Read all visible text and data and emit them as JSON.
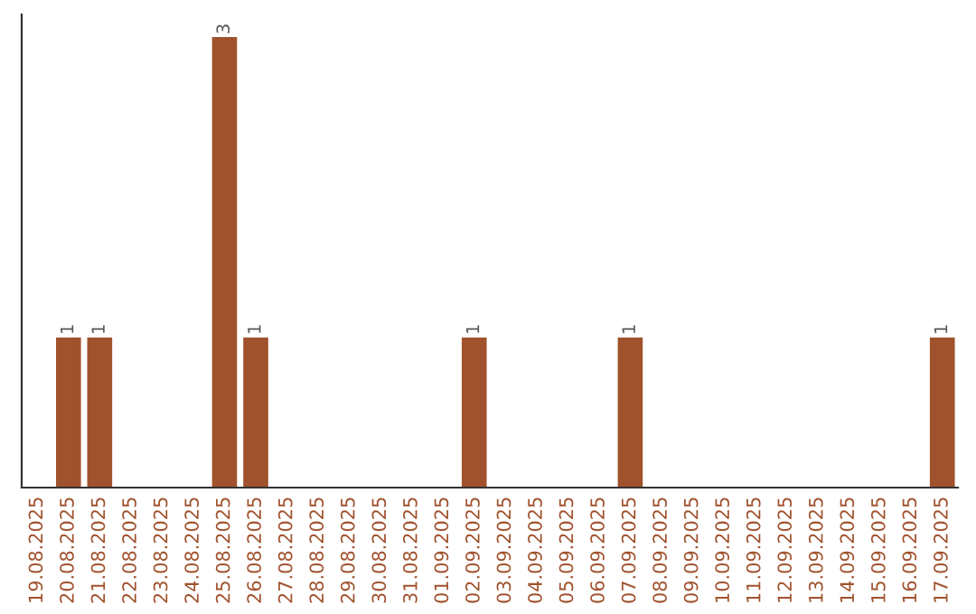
{
  "chart_data": {
    "type": "bar",
    "categories": [
      "19.08.2025",
      "20.08.2025",
      "21.08.2025",
      "22.08.2025",
      "23.08.2025",
      "24.08.2025",
      "25.08.2025",
      "26.08.2025",
      "27.08.2025",
      "28.08.2025",
      "29.08.2025",
      "30.08.2025",
      "31.08.2025",
      "01.09.2025",
      "02.09.2025",
      "03.09.2025",
      "04.09.2025",
      "05.09.2025",
      "06.09.2025",
      "07.09.2025",
      "08.09.2025",
      "09.09.2025",
      "10.09.2025",
      "11.09.2025",
      "12.09.2025",
      "13.09.2025",
      "14.09.2025",
      "15.09.2025",
      "16.09.2025",
      "17.09.2025"
    ],
    "values": [
      0,
      1,
      1,
      0,
      0,
      0,
      3,
      1,
      0,
      0,
      0,
      0,
      0,
      0,
      1,
      0,
      0,
      0,
      0,
      1,
      0,
      0,
      0,
      0,
      0,
      0,
      0,
      0,
      0,
      1
    ],
    "value_labels": [
      null,
      "1",
      "1",
      null,
      null,
      null,
      "3",
      "1",
      null,
      null,
      null,
      null,
      null,
      null,
      "1",
      null,
      null,
      null,
      null,
      "1",
      null,
      null,
      null,
      null,
      null,
      null,
      null,
      null,
      null,
      "1"
    ],
    "color": "#a0522d",
    "ylim": [
      0,
      3.15
    ],
    "tick_labels": "x",
    "grid": false,
    "legend": false
  }
}
